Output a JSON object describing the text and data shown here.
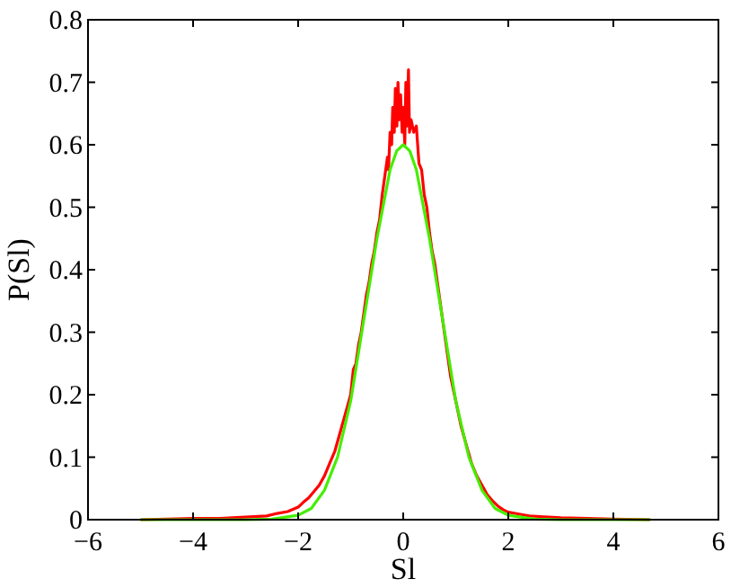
{
  "chart_data": {
    "type": "line",
    "xlabel": "Sl",
    "ylabel": "P(Sl)",
    "xlim": [
      -6,
      6
    ],
    "ylim": [
      0,
      0.8
    ],
    "xticks": [
      {
        "value": -6,
        "label": "−6"
      },
      {
        "value": -4,
        "label": "−4"
      },
      {
        "value": -2,
        "label": "−2"
      },
      0,
      2,
      4,
      6
    ],
    "yticks": [
      0,
      0.1,
      0.2,
      0.3,
      0.4,
      0.5,
      0.6,
      0.7,
      0.8
    ],
    "grid": false,
    "marker": "none",
    "line_style": "solid",
    "series": [
      {
        "color": "#ff0000",
        "x": [
          -5,
          -4.5,
          -4,
          -3.5,
          -3,
          -2.6,
          -2.4,
          -2.2,
          -2,
          -1.9,
          -1.8,
          -1.7,
          -1.6,
          -1.5,
          -1.4,
          -1.3,
          -1.2,
          -1.1,
          -1,
          -0.95,
          -0.9,
          -0.85,
          -0.8,
          -0.75,
          -0.7,
          -0.65,
          -0.6,
          -0.55,
          -0.5,
          -0.45,
          -0.4,
          -0.35,
          -0.3,
          -0.28,
          -0.25,
          -0.22,
          -0.2,
          -0.17,
          -0.15,
          -0.12,
          -0.1,
          -0.07,
          -0.05,
          -0.02,
          0,
          0.03,
          0.05,
          0.07,
          0.1,
          0.12,
          0.15,
          0.2,
          0.25,
          0.3,
          0.35,
          0.4,
          0.45,
          0.5,
          0.55,
          0.6,
          0.65,
          0.7,
          0.75,
          0.8,
          0.85,
          0.9,
          0.95,
          1,
          1.1,
          1.2,
          1.3,
          1.4,
          1.5,
          1.6,
          1.7,
          1.8,
          1.9,
          2,
          2.2,
          2.4,
          2.6,
          3,
          3.5,
          4,
          4.7
        ],
        "values": [
          0,
          0.001,
          0.002,
          0.002,
          0.004,
          0.006,
          0.01,
          0.013,
          0.02,
          0.028,
          0.035,
          0.045,
          0.055,
          0.07,
          0.09,
          0.11,
          0.14,
          0.17,
          0.2,
          0.24,
          0.25,
          0.28,
          0.3,
          0.33,
          0.36,
          0.38,
          0.41,
          0.43,
          0.46,
          0.48,
          0.52,
          0.55,
          0.58,
          0.56,
          0.62,
          0.6,
          0.66,
          0.62,
          0.69,
          0.63,
          0.7,
          0.64,
          0.68,
          0.62,
          0.66,
          0.6,
          0.7,
          0.63,
          0.72,
          0.62,
          0.64,
          0.62,
          0.63,
          0.57,
          0.56,
          0.52,
          0.5,
          0.46,
          0.43,
          0.41,
          0.38,
          0.35,
          0.32,
          0.29,
          0.26,
          0.23,
          0.21,
          0.19,
          0.15,
          0.12,
          0.09,
          0.07,
          0.055,
          0.04,
          0.03,
          0.022,
          0.016,
          0.012,
          0.009,
          0.006,
          0.005,
          0.003,
          0.002,
          0.001,
          0
        ]
      },
      {
        "color": "#44ee00",
        "x": [
          -5,
          -3,
          -2.5,
          -2,
          -1.75,
          -1.5,
          -1.25,
          -1,
          -0.75,
          -0.5,
          -0.25,
          -0.125,
          0,
          0.125,
          0.25,
          0.5,
          0.75,
          1,
          1.25,
          1.5,
          1.75,
          2,
          2.5,
          3,
          4.7
        ],
        "values": [
          0,
          0,
          0.001,
          0.007,
          0.018,
          0.047,
          0.1,
          0.19,
          0.32,
          0.45,
          0.56,
          0.59,
          0.6,
          0.59,
          0.56,
          0.45,
          0.32,
          0.19,
          0.1,
          0.047,
          0.018,
          0.007,
          0.001,
          0,
          0
        ]
      }
    ]
  }
}
